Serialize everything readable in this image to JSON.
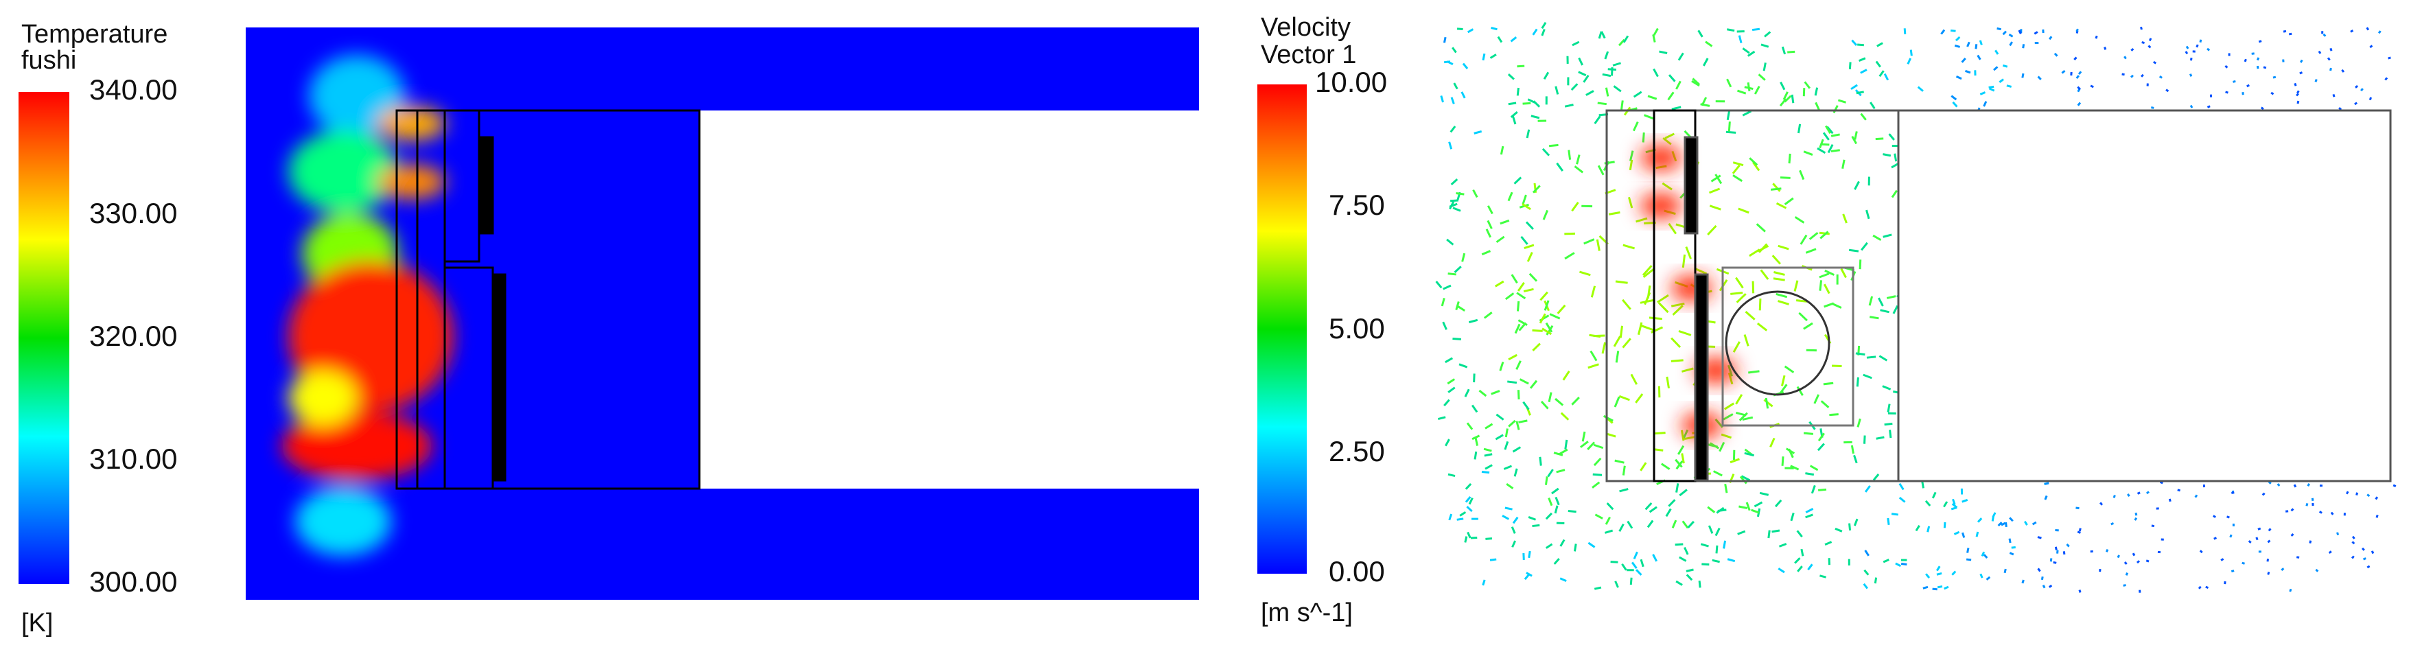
{
  "panels": [
    {
      "title": "Temperature",
      "subtitle": "fushi",
      "ticks": [
        "340.00",
        "330.00",
        "320.00",
        "310.00",
        "300.00"
      ],
      "unit": "[K]"
    },
    {
      "title": "Velocity",
      "subtitle": "Vector 1",
      "ticks": [
        "10.00",
        "7.50",
        "5.00",
        "2.50",
        "0.00"
      ],
      "unit": "[m s^-1]"
    }
  ]
}
